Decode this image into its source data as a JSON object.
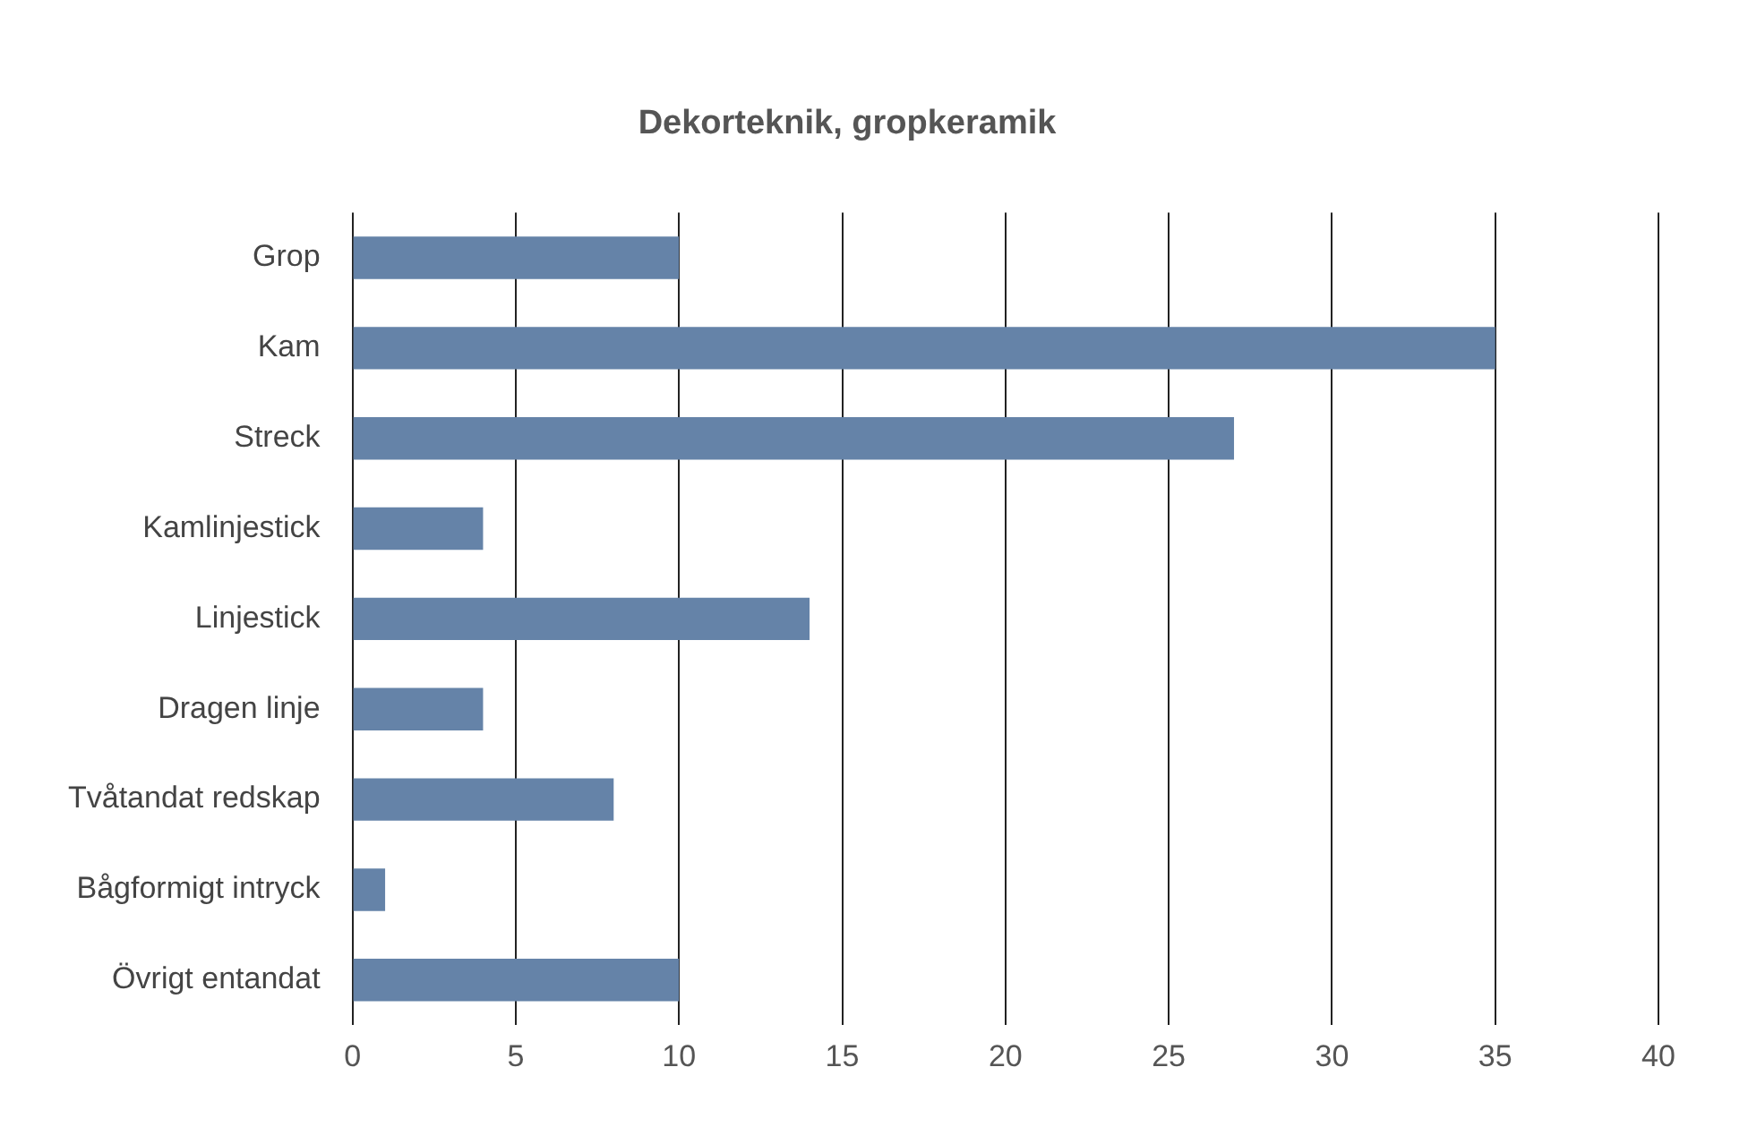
{
  "chart_data": {
    "type": "bar",
    "orientation": "horizontal",
    "title": "Dekorteknik, gropkeramik",
    "categories": [
      "Grop",
      "Kam",
      "Streck",
      "Kamlinjestick",
      "Linjestick",
      "Dragen linje",
      "Tvåtandat redskap",
      "Bågformigt intryck",
      "Övrigt entandat"
    ],
    "values": [
      10,
      35,
      27,
      4,
      14,
      4,
      8,
      1,
      10
    ],
    "color": "#6583a8",
    "xlim": [
      0,
      40
    ],
    "xticks": [
      0,
      5,
      10,
      15,
      20,
      25,
      30,
      35,
      40
    ],
    "grid": "x",
    "legend": false
  }
}
